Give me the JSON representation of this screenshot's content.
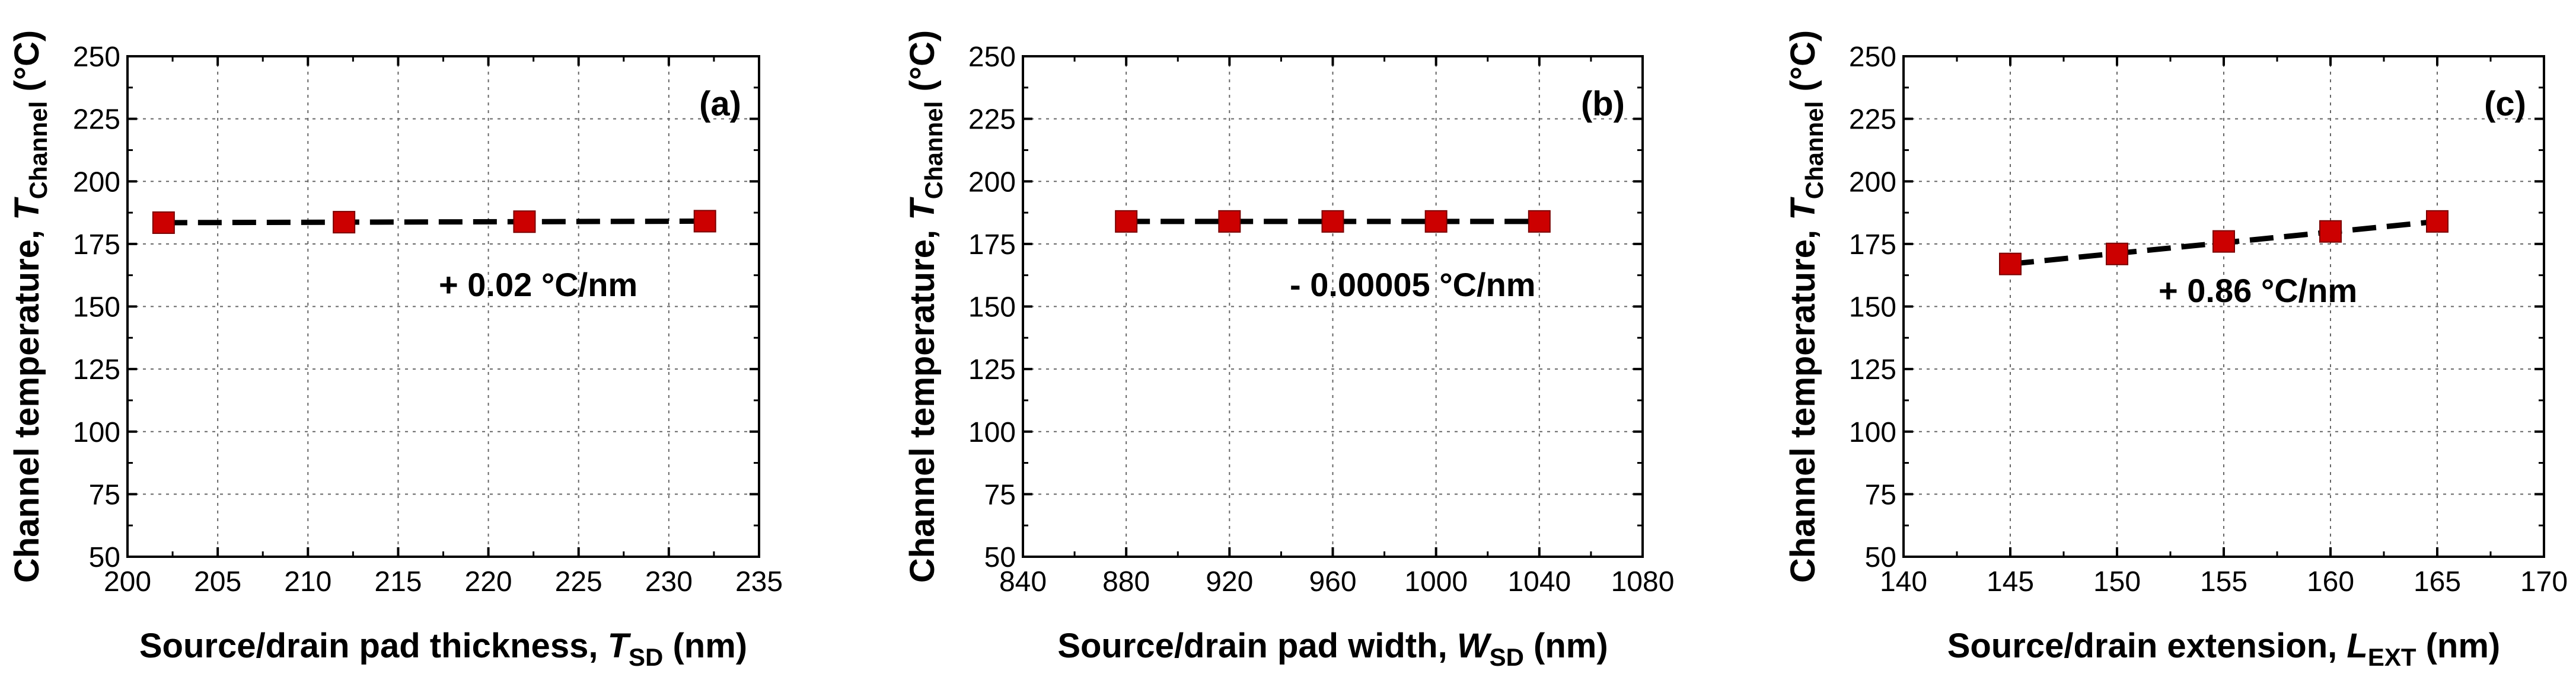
{
  "chart_data": [
    {
      "type": "scatter",
      "panel_label": "(a)",
      "xlabel_main": "Source/drain pad thickness, ",
      "xlabel_var": "T",
      "xlabel_sub": "SD",
      "xlabel_unit": " (nm)",
      "ylabel_main": "Channel temperature, ",
      "ylabel_var": "T",
      "ylabel_sub": "Channel",
      "ylabel_unit": " (°C)",
      "xlim": [
        200,
        235
      ],
      "ylim": [
        50,
        250
      ],
      "xticks": [
        200,
        205,
        210,
        215,
        220,
        225,
        230,
        235
      ],
      "yticks": [
        50,
        75,
        100,
        125,
        150,
        175,
        200,
        225,
        250
      ],
      "grid": true,
      "marker_color": "#cc0000",
      "series": [
        {
          "x": [
            202,
            212,
            222,
            232
          ],
          "y": [
            183.5,
            183.7,
            183.9,
            184.1
          ]
        }
      ],
      "fit": {
        "x": [
          202,
          232
        ],
        "y": [
          183.5,
          184.1
        ]
      },
      "annotation": "+ 0.02 °C/nm"
    },
    {
      "type": "scatter",
      "panel_label": "(b)",
      "xlabel_main": "Source/drain pad width, ",
      "xlabel_var": "W",
      "xlabel_sub": "SD",
      "xlabel_unit": " (nm)",
      "ylabel_main": "Channel temperature, ",
      "ylabel_var": "T",
      "ylabel_sub": "Channel",
      "ylabel_unit": " (°C)",
      "xlim": [
        840,
        1080
      ],
      "ylim": [
        50,
        250
      ],
      "xticks": [
        840,
        880,
        920,
        960,
        1000,
        1040,
        1080
      ],
      "yticks": [
        50,
        75,
        100,
        125,
        150,
        175,
        200,
        225,
        250
      ],
      "grid": true,
      "marker_color": "#cc0000",
      "series": [
        {
          "x": [
            880,
            920,
            960,
            1000,
            1040
          ],
          "y": [
            184,
            184,
            184,
            184,
            184
          ]
        }
      ],
      "fit": {
        "x": [
          880,
          1040
        ],
        "y": [
          184,
          184
        ]
      },
      "annotation": "- 0.00005 °C/nm"
    },
    {
      "type": "scatter",
      "panel_label": "(c)",
      "xlabel_main": "Source/drain extension, ",
      "xlabel_var": "L",
      "xlabel_sub": "EXT",
      "xlabel_unit": " (nm)",
      "ylabel_main": "Channel temperature, ",
      "ylabel_var": "T",
      "ylabel_sub": "Channel",
      "ylabel_unit": " (°C)",
      "xlim": [
        140,
        170
      ],
      "ylim": [
        50,
        250
      ],
      "xticks": [
        140,
        145,
        150,
        155,
        160,
        165,
        170
      ],
      "yticks": [
        50,
        75,
        100,
        125,
        150,
        175,
        200,
        225,
        250
      ],
      "grid": true,
      "marker_color": "#cc0000",
      "series": [
        {
          "x": [
            145,
            150,
            155,
            160,
            165
          ],
          "y": [
            167,
            171,
            176,
            180,
            184
          ]
        }
      ],
      "fit": {
        "x": [
          145,
          165
        ],
        "y": [
          167,
          184
        ]
      },
      "annotation": "+ 0.86 °C/nm"
    }
  ]
}
